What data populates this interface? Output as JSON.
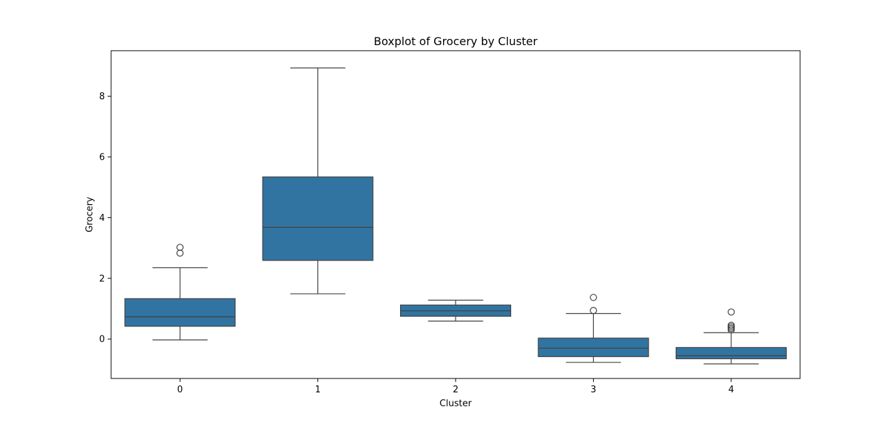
{
  "chart_data": {
    "type": "box",
    "title": "Boxplot of Grocery by Cluster",
    "xlabel": "Cluster",
    "ylabel": "Grocery",
    "categories": [
      "0",
      "1",
      "2",
      "3",
      "4"
    ],
    "yticks": [
      0,
      2,
      4,
      6,
      8
    ],
    "ylim": [
      -1.3,
      9.5
    ],
    "grid": false,
    "box_color": "#3274a1",
    "edge_color": "#3f3f3f",
    "boxes": [
      {
        "category": "0",
        "whisker_low": -0.03,
        "q1": 0.42,
        "median": 0.73,
        "q3": 1.33,
        "whisker_high": 2.35,
        "outliers": [
          2.83,
          3.02
        ]
      },
      {
        "category": "1",
        "whisker_low": 1.49,
        "q1": 2.59,
        "median": 3.68,
        "q3": 5.34,
        "whisker_high": 8.93,
        "outliers": []
      },
      {
        "category": "2",
        "whisker_low": 0.59,
        "q1": 0.75,
        "median": 0.93,
        "q3": 1.12,
        "whisker_high": 1.28,
        "outliers": []
      },
      {
        "category": "3",
        "whisker_low": -0.77,
        "q1": -0.58,
        "median": -0.3,
        "q3": 0.03,
        "whisker_high": 0.84,
        "outliers": [
          0.94,
          1.37
        ]
      },
      {
        "category": "4",
        "whisker_low": -0.82,
        "q1": -0.65,
        "median": -0.55,
        "q3": -0.28,
        "whisker_high": 0.21,
        "outliers": [
          0.3,
          0.35,
          0.4,
          0.45,
          0.89
        ]
      }
    ]
  }
}
